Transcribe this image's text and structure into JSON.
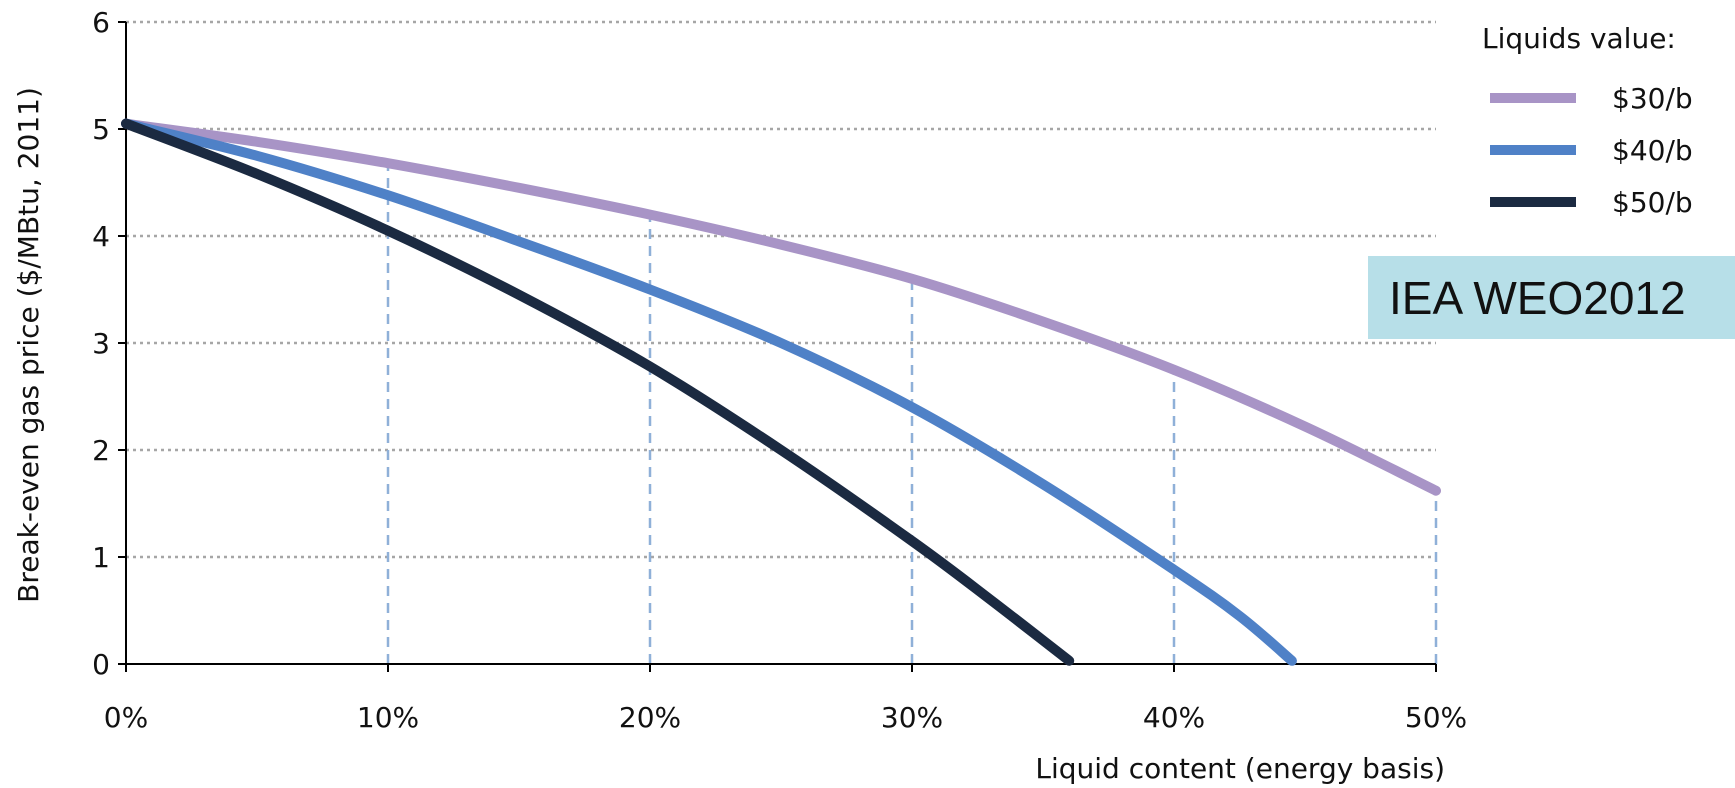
{
  "chart_data": {
    "type": "line",
    "xlabel": "Liquid content (energy basis)",
    "ylabel": "Break-even gas price ($/MBtu, 2011)",
    "xlim": [
      0,
      50
    ],
    "ylim": [
      0,
      6
    ],
    "x_ticks": [
      "0%",
      "10%",
      "20%",
      "30%",
      "40%",
      "50%"
    ],
    "y_ticks": [
      "0",
      "1",
      "2",
      "3",
      "4",
      "5",
      "6"
    ],
    "grid": "horizontal dotted",
    "legend": {
      "title": "Liquids value:",
      "placement": "top-right"
    },
    "series": [
      {
        "name": "$30/b",
        "color": "#a894c6",
        "x": [
          0,
          5,
          10,
          15,
          20,
          25,
          30,
          35,
          40,
          45,
          50
        ],
        "y": [
          5.05,
          4.88,
          4.68,
          4.45,
          4.2,
          3.92,
          3.6,
          3.2,
          2.75,
          2.22,
          1.62
        ]
      },
      {
        "name": "$40/b",
        "color": "#4f81c7",
        "x": [
          0,
          5,
          10,
          15,
          20,
          25,
          30,
          35,
          40,
          42.5,
          44.5
        ],
        "y": [
          5.05,
          4.75,
          4.38,
          3.95,
          3.5,
          3.0,
          2.4,
          1.68,
          0.88,
          0.45,
          0.03
        ]
      },
      {
        "name": "$50/b",
        "color": "#1b2a41",
        "x": [
          0,
          5,
          10,
          15,
          20,
          25,
          30,
          33,
          36
        ],
        "y": [
          5.05,
          4.58,
          4.05,
          3.45,
          2.78,
          2.0,
          1.15,
          0.6,
          0.03
        ]
      }
    ],
    "reference_lines": {
      "color": "#8fb0d8",
      "style": "dashed",
      "x": [
        10,
        20,
        30,
        40,
        50
      ],
      "y_top": [
        4.68,
        4.2,
        3.6,
        2.75,
        1.62
      ]
    },
    "annotation": {
      "text": "IEA WEO2012",
      "background": "#b7dfe8"
    }
  }
}
